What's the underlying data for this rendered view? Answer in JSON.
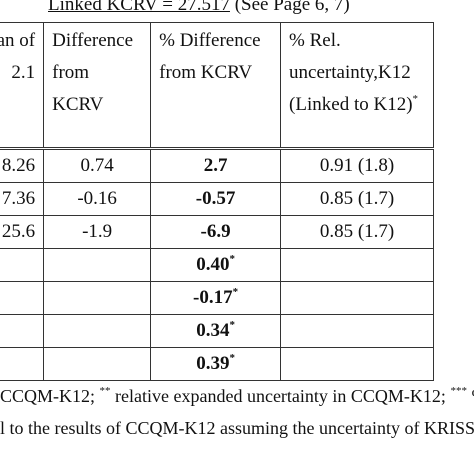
{
  "title": {
    "kcrv": "Linked KCRV = 27.517",
    "note": " (See Page 6, 7)"
  },
  "table": {
    "header": [
      [
        "ean of",
        "2.1"
      ],
      [
        "Difference",
        "from",
        "KCRV"
      ],
      [
        "% Difference",
        "from  KCRV"
      ],
      [
        "% Rel.",
        "uncertainty,K12",
        {
          "text": "(Linked to K12)",
          "sup": "*"
        }
      ]
    ],
    "rows": [
      [
        "8.26",
        "0.74",
        "2.7",
        "0.91 (1.8)"
      ],
      [
        "7.36",
        "-0.16",
        "-0.57",
        "0.85 (1.7)"
      ],
      [
        "25.6",
        "-1.9",
        "-6.9",
        "0.85 (1.7)"
      ],
      [
        null,
        null,
        {
          "text": "0.40",
          "sup": "*"
        },
        null
      ],
      [
        null,
        null,
        {
          "text": "-0.17",
          "sup": "*"
        },
        null
      ],
      [
        null,
        null,
        {
          "text": "0.34",
          "sup": "*"
        },
        null
      ],
      [
        null,
        null,
        {
          "text": "0.39",
          "sup": "*"
        },
        null
      ]
    ]
  },
  "footnotes": [
    [
      "CCQM-K12; ",
      {
        "sup": "**"
      },
      " relative expanded uncertainty in CCQM-K12; ",
      {
        "sup": "***"
      },
      " %"
    ],
    [
      "l to the results of CCQM-K12 assuming the uncertainty of KRISS"
    ]
  ]
}
